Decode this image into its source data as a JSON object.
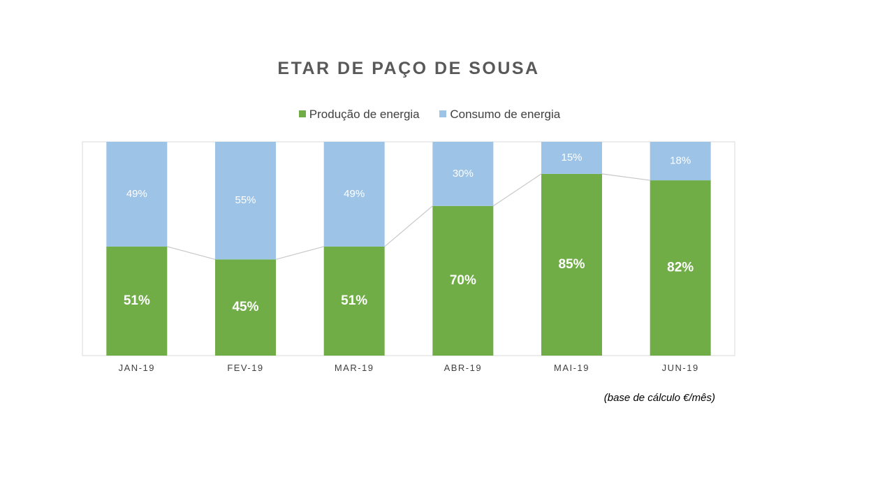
{
  "chart_data": {
    "type": "bar",
    "stacked": true,
    "normalized": true,
    "title": "ETAR DE PAÇO DE SOUSA",
    "categories": [
      "JAN-19",
      "FEV-19",
      "MAR-19",
      "ABR-19",
      "MAI-19",
      "JUN-19"
    ],
    "series": [
      {
        "name": "Produção de energia",
        "color": "#70AD47",
        "values": [
          51,
          45,
          51,
          70,
          85,
          82
        ],
        "labels": [
          "51%",
          "45%",
          "51%",
          "70%",
          "85%",
          "82%"
        ]
      },
      {
        "name": "Consumo de energia",
        "color": "#9DC3E6",
        "values": [
          49,
          55,
          49,
          30,
          15,
          18
        ],
        "labels": [
          "49%",
          "55%",
          "49%",
          "30%",
          "15%",
          "18%"
        ]
      }
    ],
    "ylim": [
      0,
      100
    ],
    "series_lines": true,
    "legend_position": "top"
  },
  "footnote": "(base de cálculo €/mês)"
}
